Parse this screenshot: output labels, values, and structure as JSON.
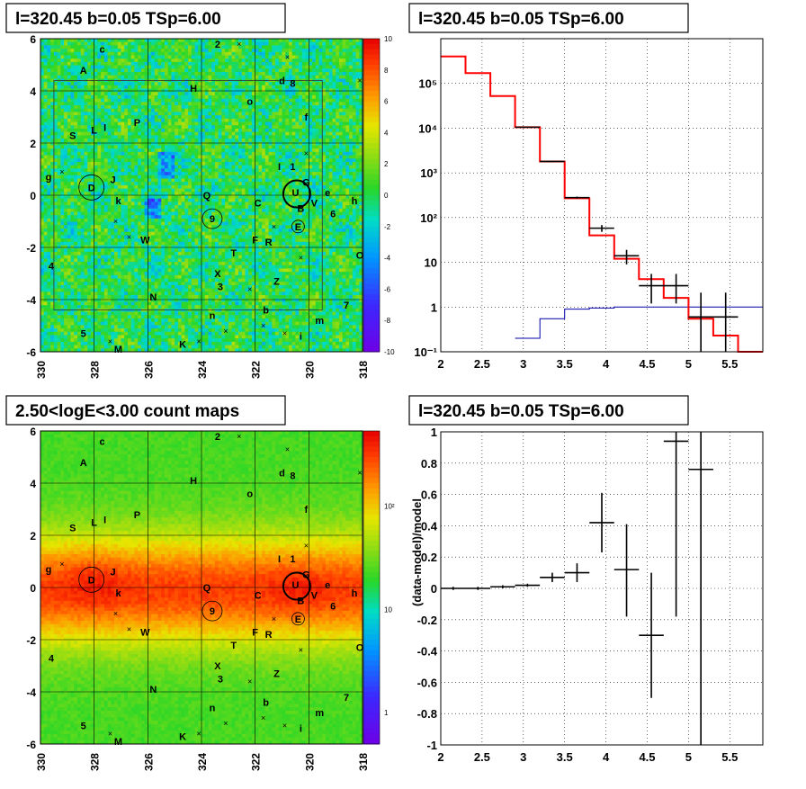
{
  "panels": {
    "tl": {
      "title": "l=320.45 b=0.05 TSp=6.00"
    },
    "tr": {
      "title": "l=320.45 b=0.05 TSp=6.00"
    },
    "bl": {
      "title": "2.50<logE<3.00 count maps"
    },
    "br": {
      "title": "l=320.45 b=0.05 TSp=6.00"
    }
  },
  "colors": {
    "data": "#000000",
    "model": "#ff0000",
    "source_component": "#0000aa",
    "grid": "#000000"
  },
  "chart_data": [
    {
      "id": "residual-map",
      "type": "heatmap",
      "title": "l=320.45 b=0.05 TSp=6.00",
      "xlim": [
        330,
        318
      ],
      "ylim": [
        -6,
        6
      ],
      "x_ticks": [
        "330",
        "328",
        "326",
        "324",
        "322",
        "320",
        "318"
      ],
      "y_ticks": [
        "-6",
        "-4",
        "-2",
        "0",
        "2",
        "4",
        "6"
      ],
      "z_ticks": [
        "10",
        "8",
        "6",
        "4",
        "2",
        "0",
        "-2",
        "-4",
        "-6",
        "-8",
        "-10"
      ],
      "zlim": [
        -10,
        10
      ],
      "colorscale": "rainbow (purple-blue-green-yellow-red)",
      "grid": true
    },
    {
      "id": "spectrum",
      "type": "line",
      "title": "l=320.45 b=0.05 TSp=6.00",
      "xlim": [
        2,
        5.9
      ],
      "ylim": [
        0.1,
        1000000
      ],
      "log_y": true,
      "x_ticks": [
        "2",
        "2.5",
        "3",
        "3.5",
        "4",
        "4.5",
        "5",
        "5.5"
      ],
      "y_ticks": [
        "10⁵",
        "10⁴",
        "10³",
        "10²",
        "10",
        "1",
        "10⁻¹"
      ],
      "grid": true,
      "series": [
        {
          "role": "model",
          "edges": [
            2.0,
            2.3,
            2.6,
            2.9,
            3.2,
            3.5,
            3.8,
            4.1,
            4.4,
            4.7,
            5.0,
            5.3,
            5.6,
            5.9
          ],
          "values": [
            400000,
            170000,
            52000,
            10500,
            1800,
            270,
            40,
            12,
            4.2,
            1.6,
            0.55,
            0.23,
            0.1
          ]
        },
        {
          "role": "data",
          "x": [
            3.05,
            3.35,
            3.65,
            3.95,
            4.25,
            4.55,
            4.85,
            5.15,
            5.45
          ],
          "y": [
            10500,
            1800,
            280,
            58,
            14,
            3,
            3,
            0.6,
            0.6
          ],
          "xerr": 0.15,
          "ylow": [
            10200,
            1750,
            265,
            48,
            9,
            1.2,
            1.2,
            0.1,
            0.1
          ],
          "yhigh": [
            10800,
            1850,
            295,
            68,
            19,
            5.5,
            5.5,
            2.1,
            2.1
          ]
        },
        {
          "role": "source_component",
          "edges": [
            2.9,
            3.2,
            3.5,
            3.8,
            4.1,
            4.4,
            4.7,
            5.0,
            5.3,
            5.6,
            5.9
          ],
          "values": [
            0.2,
            0.55,
            0.9,
            0.95,
            1.0,
            1.0,
            1.0,
            1.0,
            1.0,
            1.0
          ]
        }
      ]
    },
    {
      "id": "count-map",
      "type": "heatmap",
      "title": "2.50<logE<3.00 count maps",
      "xlim": [
        330,
        318
      ],
      "ylim": [
        -6,
        6
      ],
      "x_ticks": [
        "330",
        "328",
        "326",
        "324",
        "322",
        "320",
        "318"
      ],
      "y_ticks": [
        "-6",
        "-4",
        "-2",
        "0",
        "2",
        "4",
        "6"
      ],
      "z_ticks": [
        "10²",
        "10",
        "1"
      ],
      "log_z": true,
      "colorscale": "rainbow (purple-blue-green-yellow-red)",
      "grid": true
    },
    {
      "id": "residual-ratio",
      "type": "scatter",
      "title": "l=320.45 b=0.05 TSp=6.00",
      "ylabel": "(data-model)/model",
      "xlim": [
        2,
        5.9
      ],
      "ylim": [
        -1,
        1
      ],
      "x_ticks": [
        "2",
        "2.5",
        "3",
        "3.5",
        "4",
        "4.5",
        "5",
        "5.5"
      ],
      "y_ticks": [
        "1",
        "0.8",
        "0.6",
        "0.4",
        "0.2",
        "0",
        "-0.2",
        "-0.4",
        "-0.6",
        "-0.8",
        "-1"
      ],
      "grid": true,
      "series": [
        {
          "role": "data",
          "x": [
            2.15,
            2.45,
            2.75,
            3.05,
            3.35,
            3.65,
            3.95,
            4.25,
            4.55,
            4.85,
            5.15
          ],
          "y": [
            0.0,
            0.0,
            0.01,
            0.02,
            0.07,
            0.1,
            0.42,
            0.12,
            -0.3,
            0.94,
            0.76
          ],
          "xerr": 0.15,
          "ylow": [
            -0.01,
            -0.01,
            0.0,
            0.01,
            0.04,
            0.04,
            0.23,
            -0.18,
            -0.7,
            -0.18,
            -1.0
          ],
          "yhigh": [
            0.01,
            0.01,
            0.02,
            0.03,
            0.1,
            0.16,
            0.61,
            0.41,
            0.1,
            1.0,
            1.0
          ]
        }
      ]
    }
  ],
  "map_labels": [
    {
      "text": "c",
      "l": 327.7,
      "b": 5.6
    },
    {
      "text": "2",
      "l": 323.4,
      "b": 5.8
    },
    {
      "text": "A",
      "l": 328.4,
      "b": 4.8
    },
    {
      "text": "d",
      "l": 321.0,
      "b": 4.4
    },
    {
      "text": "8",
      "l": 320.6,
      "b": 4.3
    },
    {
      "text": "H",
      "l": 324.3,
      "b": 4.1
    },
    {
      "text": "o",
      "l": 322.2,
      "b": 3.6
    },
    {
      "text": "P",
      "l": 326.4,
      "b": 2.8
    },
    {
      "text": "f",
      "l": 320.1,
      "b": 3.0
    },
    {
      "text": "S",
      "l": 328.8,
      "b": 2.3
    },
    {
      "text": "L",
      "l": 328.0,
      "b": 2.5
    },
    {
      "text": "I",
      "l": 327.6,
      "b": 2.6
    },
    {
      "text": "I",
      "l": 321.1,
      "b": 1.1
    },
    {
      "text": "1",
      "l": 320.6,
      "b": 1.1
    },
    {
      "text": "g",
      "l": 329.7,
      "b": 0.7
    },
    {
      "text": "D",
      "l": 328.1,
      "b": 0.3
    },
    {
      "text": "J",
      "l": 327.3,
      "b": 0.6
    },
    {
      "text": "G",
      "l": 320.1,
      "b": 0.5
    },
    {
      "text": "U",
      "l": 320.5,
      "b": 0.1
    },
    {
      "text": "e",
      "l": 319.3,
      "b": 0.1
    },
    {
      "text": "k",
      "l": 327.1,
      "b": -0.2
    },
    {
      "text": "Q",
      "l": 323.8,
      "b": 0.0
    },
    {
      "text": "C",
      "l": 321.9,
      "b": -0.3
    },
    {
      "text": "B",
      "l": 320.3,
      "b": -0.5
    },
    {
      "text": "V",
      "l": 319.8,
      "b": -0.3
    },
    {
      "text": "h",
      "l": 318.3,
      "b": -0.2
    },
    {
      "text": "6",
      "l": 319.1,
      "b": -0.7
    },
    {
      "text": "9",
      "l": 323.6,
      "b": -0.9
    },
    {
      "text": "E",
      "l": 320.4,
      "b": -1.2
    },
    {
      "text": "W",
      "l": 326.1,
      "b": -1.7
    },
    {
      "text": "F",
      "l": 322.0,
      "b": -1.7
    },
    {
      "text": "R",
      "l": 321.5,
      "b": -1.8
    },
    {
      "text": "T",
      "l": 322.8,
      "b": -2.2
    },
    {
      "text": "4",
      "l": 329.6,
      "b": -2.7
    },
    {
      "text": "O",
      "l": 318.1,
      "b": -2.3
    },
    {
      "text": "X",
      "l": 323.4,
      "b": -3.0
    },
    {
      "text": "3",
      "l": 323.3,
      "b": -3.5
    },
    {
      "text": "Z",
      "l": 321.2,
      "b": -3.3
    },
    {
      "text": "N",
      "l": 325.8,
      "b": -3.9
    },
    {
      "text": "7",
      "l": 318.6,
      "b": -4.2
    },
    {
      "text": "n",
      "l": 323.6,
      "b": -4.6
    },
    {
      "text": "b",
      "l": 321.6,
      "b": -4.4
    },
    {
      "text": "m",
      "l": 319.6,
      "b": -4.8
    },
    {
      "text": "5",
      "l": 328.4,
      "b": -5.3
    },
    {
      "text": "i",
      "l": 320.3,
      "b": -5.4
    },
    {
      "text": "M",
      "l": 327.1,
      "b": -5.9
    },
    {
      "text": "K",
      "l": 324.7,
      "b": -5.7
    }
  ]
}
